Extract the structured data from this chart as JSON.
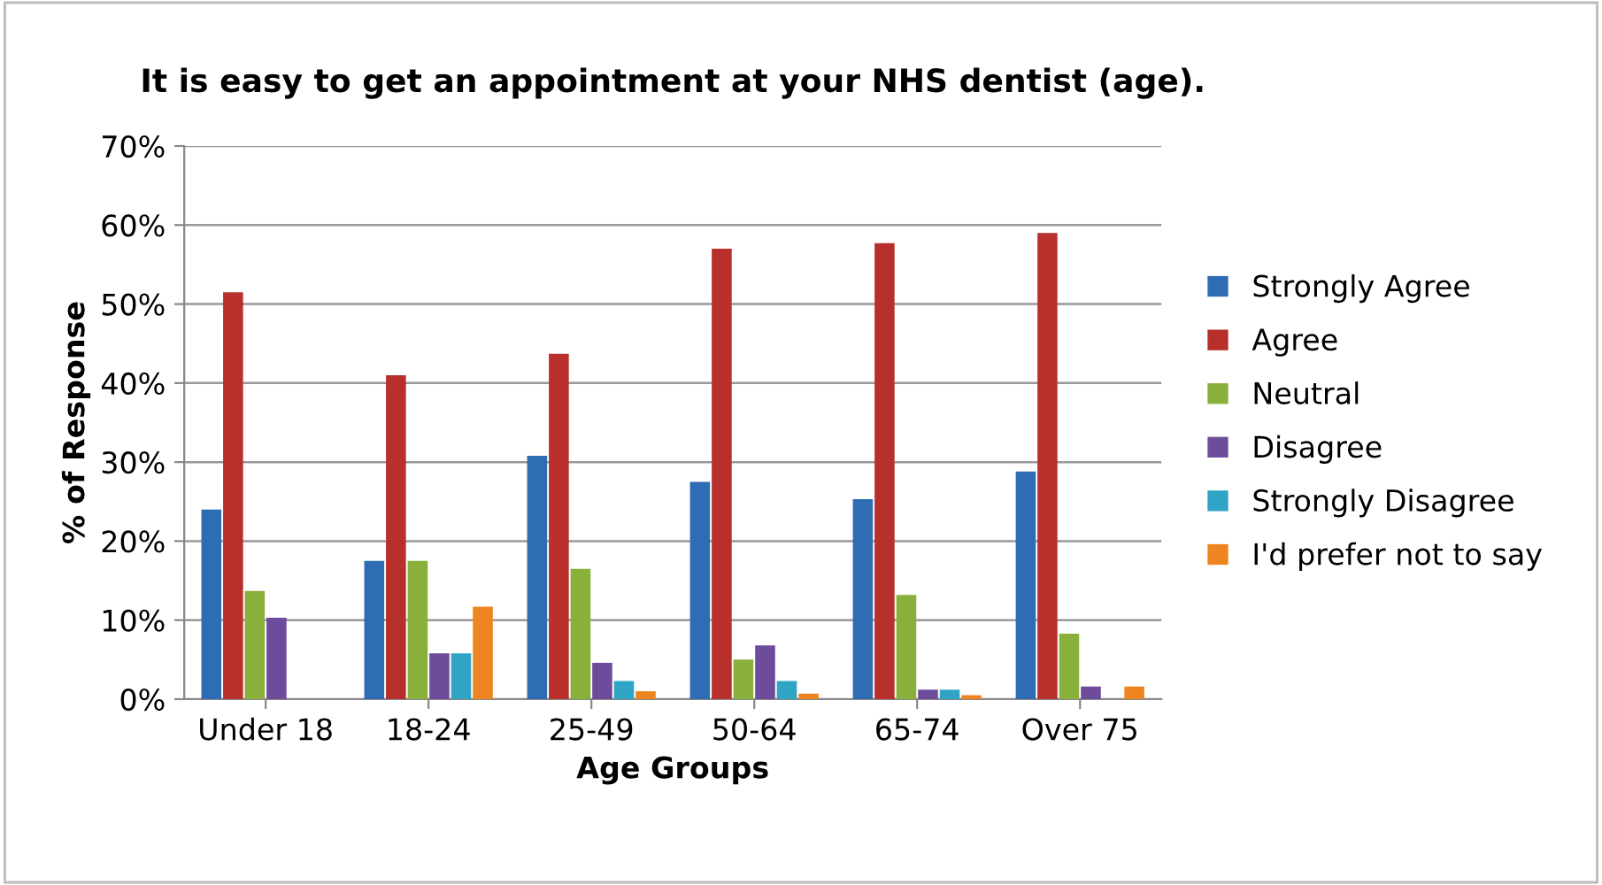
{
  "chart_data": {
    "type": "bar",
    "title": "It is easy to get an appointment at your NHS dentist (age).",
    "xlabel": "Age Groups",
    "ylabel": "% of Response",
    "categories": [
      "Under 18",
      "18-24",
      "25-49",
      "50-64",
      "65-74",
      "Over 75"
    ],
    "series": [
      {
        "name": "Strongly Agree",
        "color": "#2e6db4",
        "values": [
          24,
          17.5,
          30.8,
          27.5,
          25.3,
          28.8
        ]
      },
      {
        "name": "Agree",
        "color": "#b8302c",
        "values": [
          51.5,
          41,
          43.7,
          57,
          57.7,
          59
        ]
      },
      {
        "name": "Neutral",
        "color": "#88b03a",
        "values": [
          13.7,
          17.5,
          16.5,
          5,
          13.2,
          8.3
        ]
      },
      {
        "name": "Disagree",
        "color": "#6e4c9c",
        "values": [
          10.3,
          5.8,
          4.6,
          6.8,
          1.2,
          1.6
        ]
      },
      {
        "name": "Strongly Disagree",
        "color": "#30a4c4",
        "values": [
          null,
          5.8,
          2.3,
          2.3,
          1.2,
          null
        ]
      },
      {
        "name": "I'd prefer not to say",
        "color": "#ee8520",
        "values": [
          null,
          11.7,
          1.0,
          0.7,
          0.5,
          1.6
        ]
      }
    ],
    "ylim": [
      0,
      70
    ],
    "yticks": [
      {
        "value": 0,
        "label": "0%"
      },
      {
        "value": 10,
        "label": "10%"
      },
      {
        "value": 20,
        "label": "20%"
      },
      {
        "value": 30,
        "label": "30%"
      },
      {
        "value": 40,
        "label": "40%"
      },
      {
        "value": 50,
        "label": "50%"
      },
      {
        "value": 60,
        "label": "60%"
      },
      {
        "value": 70,
        "label": "70%"
      }
    ],
    "grid": "y",
    "legend": "right"
  }
}
